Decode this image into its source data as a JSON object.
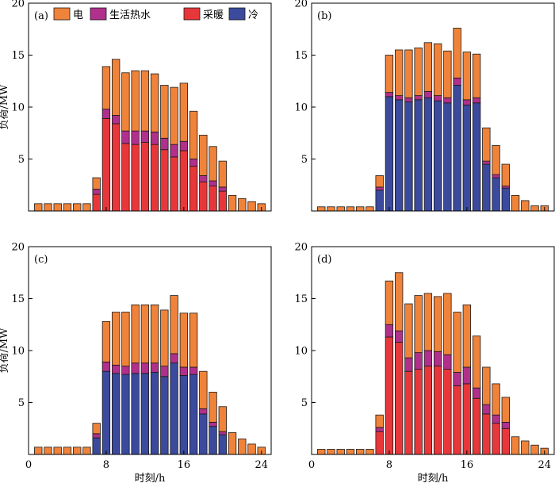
{
  "legend": {
    "items": [
      {
        "label": "电",
        "color": "#F0833A"
      },
      {
        "label": "生活热水",
        "color": "#B0308B"
      },
      {
        "label": "采暖",
        "color": "#E8373A"
      },
      {
        "label": "冷",
        "color": "#3B4A9C"
      }
    ]
  },
  "chart_data": [
    {
      "type": "bar",
      "stacked": true,
      "panel_label": "(a)",
      "ylabel": "负荷/MW",
      "xlabel": "",
      "xlim": [
        0,
        25
      ],
      "ylim": [
        0,
        20
      ],
      "xticks": [
        8,
        16,
        24
      ],
      "yticks": [
        5,
        10,
        15,
        20
      ],
      "x": [
        1,
        2,
        3,
        4,
        5,
        6,
        7,
        8,
        9,
        10,
        11,
        12,
        13,
        14,
        15,
        16,
        17,
        18,
        19,
        20,
        21,
        22,
        23,
        24
      ],
      "series": [
        {
          "name": "采暖",
          "color": "#E8373A",
          "values": [
            0,
            0,
            0,
            0,
            0,
            0,
            1.6,
            8.9,
            8.4,
            6.5,
            6.4,
            6.6,
            6.4,
            5.9,
            5.2,
            5.8,
            4.3,
            2.8,
            2.4,
            1.9,
            0,
            0,
            0,
            0
          ]
        },
        {
          "name": "冷",
          "color": "#3B4A9C",
          "values": [
            0,
            0,
            0,
            0,
            0,
            0,
            0,
            0,
            0,
            0,
            0,
            0,
            0,
            0,
            0,
            0,
            0,
            0,
            0,
            0,
            0,
            0,
            0,
            0
          ]
        },
        {
          "name": "生活热水",
          "color": "#B0308B",
          "values": [
            0,
            0,
            0,
            0,
            0,
            0,
            0.5,
            0.9,
            0.8,
            1.2,
            1.3,
            1.1,
            1.2,
            1.1,
            1.2,
            0.9,
            0.7,
            0.6,
            0.5,
            0.4,
            0,
            0,
            0,
            0
          ]
        },
        {
          "name": "电",
          "color": "#F0833A",
          "values": [
            0.7,
            0.7,
            0.7,
            0.7,
            0.7,
            0.7,
            1.1,
            4.1,
            5.4,
            5.6,
            5.8,
            5.8,
            5.6,
            5.1,
            5.5,
            5.6,
            4.6,
            3.9,
            3.3,
            2.5,
            1.5,
            1.2,
            0.9,
            0.7
          ]
        }
      ]
    },
    {
      "type": "bar",
      "stacked": true,
      "panel_label": "(b)",
      "ylabel": "",
      "xlabel": "",
      "xlim": [
        0,
        25
      ],
      "ylim": [
        0,
        20
      ],
      "xticks": [
        8,
        16,
        24
      ],
      "yticks": [
        5,
        10,
        15,
        20
      ],
      "x": [
        1,
        2,
        3,
        4,
        5,
        6,
        7,
        8,
        9,
        10,
        11,
        12,
        13,
        14,
        15,
        16,
        17,
        18,
        19,
        20,
        21,
        22,
        23,
        24
      ],
      "series": [
        {
          "name": "采暖",
          "color": "#E8373A",
          "values": [
            0,
            0,
            0,
            0,
            0,
            0,
            0,
            0,
            0,
            0,
            0,
            0,
            0,
            0,
            0,
            0,
            0,
            0,
            0,
            0,
            0,
            0,
            0,
            0
          ]
        },
        {
          "name": "冷",
          "color": "#3B4A9C",
          "values": [
            0,
            0,
            0,
            0,
            0,
            0,
            2.0,
            11.0,
            10.7,
            10.5,
            10.7,
            10.9,
            10.6,
            10.4,
            12.1,
            10.2,
            10.4,
            4.5,
            3.2,
            2.2,
            0,
            0,
            0,
            0
          ]
        },
        {
          "name": "生活热水",
          "color": "#B0308B",
          "values": [
            0,
            0,
            0,
            0,
            0,
            0,
            0.3,
            0.4,
            0.4,
            0.4,
            0.4,
            0.6,
            0.5,
            0.5,
            0.7,
            0.5,
            0.5,
            0.3,
            0.3,
            0.2,
            0,
            0,
            0,
            0
          ]
        },
        {
          "name": "电",
          "color": "#F0833A",
          "values": [
            0.4,
            0.4,
            0.4,
            0.4,
            0.4,
            0.4,
            1.1,
            3.6,
            4.4,
            4.6,
            4.6,
            4.7,
            5.0,
            4.5,
            4.8,
            4.6,
            4.2,
            3.2,
            2.8,
            2.1,
            1.5,
            1.0,
            0.5,
            0.5
          ]
        }
      ]
    },
    {
      "type": "bar",
      "stacked": true,
      "panel_label": "(c)",
      "ylabel": "负荷/MW",
      "xlabel": "时刻/h",
      "xlim": [
        0,
        25
      ],
      "ylim": [
        0,
        20
      ],
      "xticks": [
        0,
        8,
        16,
        24
      ],
      "yticks": [
        5,
        10,
        15,
        20
      ],
      "x": [
        1,
        2,
        3,
        4,
        5,
        6,
        7,
        8,
        9,
        10,
        11,
        12,
        13,
        14,
        15,
        16,
        17,
        18,
        19,
        20,
        21,
        22,
        23,
        24
      ],
      "series": [
        {
          "name": "采暖",
          "color": "#E8373A",
          "values": [
            0,
            0,
            0,
            0,
            0,
            0,
            0,
            0,
            0,
            0,
            0,
            0,
            0,
            0,
            0,
            0,
            0,
            0,
            0,
            0,
            0,
            0,
            0,
            0
          ]
        },
        {
          "name": "冷",
          "color": "#3B4A9C",
          "values": [
            0,
            0,
            0,
            0,
            0,
            0,
            1.6,
            8.0,
            7.8,
            7.7,
            7.8,
            7.8,
            7.9,
            7.5,
            8.8,
            7.6,
            7.7,
            3.9,
            2.7,
            1.9,
            0,
            0,
            0,
            0
          ]
        },
        {
          "name": "生活热水",
          "color": "#B0308B",
          "values": [
            0,
            0,
            0,
            0,
            0,
            0,
            0.4,
            0.9,
            0.8,
            0.8,
            1.0,
            1.0,
            0.9,
            1.0,
            0.9,
            0.8,
            0.7,
            0.5,
            0.4,
            0.3,
            0,
            0,
            0,
            0
          ]
        },
        {
          "name": "电",
          "color": "#F0833A",
          "values": [
            0.7,
            0.7,
            0.7,
            0.7,
            0.7,
            0.7,
            1.0,
            3.9,
            5.1,
            5.2,
            5.6,
            5.6,
            5.6,
            5.4,
            5.6,
            5.2,
            5.2,
            3.6,
            2.9,
            2.4,
            2.1,
            1.5,
            1.0,
            0.7
          ]
        }
      ]
    },
    {
      "type": "bar",
      "stacked": true,
      "panel_label": "(d)",
      "ylabel": "",
      "xlabel": "时刻/h",
      "xlim": [
        0,
        25
      ],
      "ylim": [
        0,
        20
      ],
      "xticks": [
        0,
        8,
        16,
        24
      ],
      "yticks": [
        5,
        10,
        15,
        20
      ],
      "x": [
        1,
        2,
        3,
        4,
        5,
        6,
        7,
        8,
        9,
        10,
        11,
        12,
        13,
        14,
        15,
        16,
        17,
        18,
        19,
        20,
        21,
        22,
        23,
        24
      ],
      "series": [
        {
          "name": "采暖",
          "color": "#E8373A",
          "values": [
            0,
            0,
            0,
            0,
            0,
            0,
            2.2,
            11.3,
            10.8,
            8.0,
            8.2,
            8.5,
            8.5,
            8.2,
            6.6,
            6.8,
            5.4,
            3.9,
            3.0,
            2.5,
            0,
            0,
            0,
            0
          ]
        },
        {
          "name": "冷",
          "color": "#3B4A9C",
          "values": [
            0,
            0,
            0,
            0,
            0,
            0,
            0,
            0,
            0,
            0,
            0,
            0,
            0,
            0,
            0,
            0,
            0,
            0,
            0,
            0,
            0,
            0,
            0,
            0
          ]
        },
        {
          "name": "生活热水",
          "color": "#B0308B",
          "values": [
            0,
            0,
            0,
            0,
            0,
            0,
            0.4,
            1.2,
            1.1,
            1.3,
            1.6,
            1.5,
            1.4,
            1.4,
            1.3,
            1.6,
            1.0,
            0.9,
            0.8,
            0.6,
            0,
            0,
            0,
            0
          ]
        },
        {
          "name": "电",
          "color": "#F0833A",
          "values": [
            0.5,
            0.5,
            0.5,
            0.5,
            0.5,
            0.5,
            1.2,
            4.2,
            5.6,
            5.2,
            5.5,
            5.5,
            5.3,
            5.9,
            5.8,
            6.0,
            5.0,
            3.6,
            3.0,
            2.4,
            1.7,
            1.3,
            0.9,
            0.6
          ]
        }
      ]
    }
  ]
}
